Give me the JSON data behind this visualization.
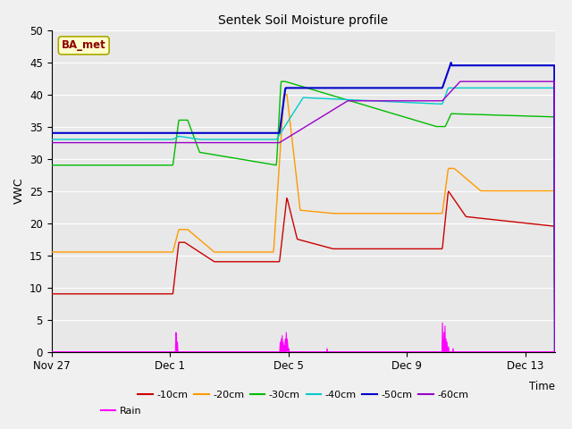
{
  "title": "Sentek Soil Moisture profile",
  "xlabel": "Time",
  "ylabel": "VWC",
  "annotation": "BA_met",
  "bg_color": "#f0f0f0",
  "plot_bg_color": "#e8e8e8",
  "ylim": [
    0,
    50
  ],
  "xlim": [
    0,
    17
  ],
  "x_ticks": [
    0,
    4,
    8,
    12,
    16
  ],
  "x_tick_labels": [
    "Nov 27",
    "Dec 1",
    "Dec 5",
    "Dec 9",
    "Dec 13"
  ],
  "y_ticks": [
    0,
    5,
    10,
    15,
    20,
    25,
    30,
    35,
    40,
    45,
    50
  ],
  "colors": {
    "10cm": "#cc0000",
    "20cm": "#ff9900",
    "30cm": "#00bb00",
    "40cm": "#00cccc",
    "50cm": "#0000cc",
    "60cm": "#9900cc",
    "rain": "#ff00ff"
  },
  "legend_labels": [
    "-10cm",
    "-20cm",
    "-30cm",
    "-40cm",
    "-50cm",
    "-60cm",
    "Rain"
  ]
}
